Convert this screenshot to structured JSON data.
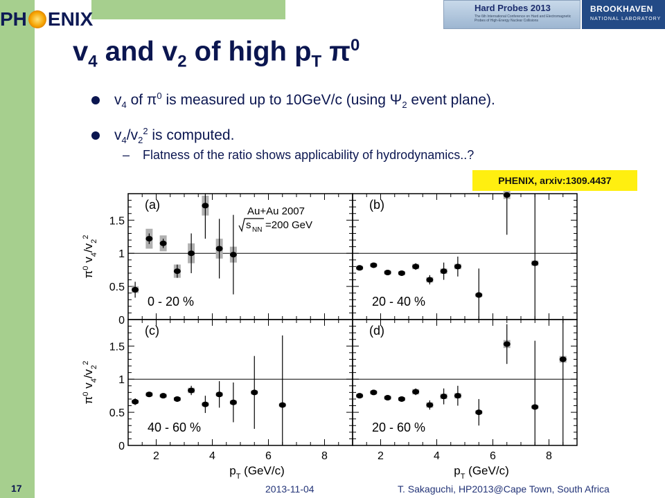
{
  "header": {
    "logo_text_left": "PH",
    "logo_text_right": "ENIX",
    "conference_title": "Hard Probes 2013",
    "conference_subtitle": "The 6th International Conference on Hard and Electromagnetic Probes of High-Energy Nuclear Collisions",
    "lab_name_line1": "BROOKHAVEN",
    "lab_name_line2": "NATIONAL LABORATORY"
  },
  "slide": {
    "title_a": "v",
    "title_a_sub": "4",
    "title_b": " and v",
    "title_b_sub": "2",
    "title_c": " of high p",
    "title_c_sub": "T",
    "title_d": " π",
    "title_d_sup": "0",
    "bullet1_a": "v",
    "bullet1_a_sub": "4",
    "bullet1_b": " of π",
    "bullet1_b_sup": "0",
    "bullet1_c": " is measured up to 10GeV/c (using Ψ",
    "bullet1_c_sub": "2",
    "bullet1_d": " event plane).",
    "bullet2_a": "v",
    "bullet2_a_sub": "4",
    "bullet2_b": "/v",
    "bullet2_b_sub": "2",
    "bullet2_b_sup": "2",
    "bullet2_c": " is computed.",
    "subbullet_dash": "–",
    "subbullet": "Flatness of the ratio shows applicability of hydrodynamics..?",
    "citation": "PHENIX, arxiv:1309.4437"
  },
  "footer": {
    "page": "17",
    "date": "2013-11-04",
    "author": "T. Sakaguchi, HP2013@Cape Town, South Africa"
  },
  "colors": {
    "navy": "#0b1650",
    "sidebar_green": "#a6cf8e",
    "highlight_yellow": "#ffef10",
    "syst_gray": "#b0b0b0"
  },
  "chart_data": [
    {
      "type": "scatter",
      "panel": "(a)",
      "annotation": "0 - 20 %",
      "extra_text": [
        "Au+Au 2007",
        "√s",
        "NN",
        "=200 GeV"
      ],
      "ylabel": "π0 v4/v2^2",
      "ylim": [
        0,
        1.9
      ],
      "xlim": [
        1,
        9
      ],
      "yticks": [
        "0",
        "0.5",
        "1",
        "1.5"
      ],
      "reference_line": 1,
      "points": [
        {
          "x": 1.25,
          "y": 0.45,
          "yerr": 0.12,
          "sys": 0.05
        },
        {
          "x": 1.75,
          "y": 1.22,
          "yerr": 0.08,
          "sys": 0.15
        },
        {
          "x": 2.25,
          "y": 1.15,
          "yerr": 0.07,
          "sys": 0.12
        },
        {
          "x": 2.75,
          "y": 0.73,
          "yerr": 0.1,
          "sys": 0.1
        },
        {
          "x": 3.25,
          "y": 1.0,
          "yerr": 0.3,
          "sys": 0.15
        },
        {
          "x": 3.75,
          "y": 1.72,
          "yerr": 0.5,
          "sys": 0.15
        },
        {
          "x": 4.25,
          "y": 1.07,
          "yerr": 0.45,
          "sys": 0.15
        },
        {
          "x": 4.75,
          "y": 0.98,
          "yerr": 0.6,
          "sys": 0.12
        }
      ]
    },
    {
      "type": "scatter",
      "panel": "(b)",
      "annotation": "20 - 40 %",
      "ylim": [
        0,
        1.9
      ],
      "xlim": [
        1,
        9
      ],
      "reference_line": 1,
      "points": [
        {
          "x": 1.25,
          "y": 0.78,
          "yerr": 0.03,
          "sys": 0.03
        },
        {
          "x": 1.75,
          "y": 0.82,
          "yerr": 0.03,
          "sys": 0.03
        },
        {
          "x": 2.25,
          "y": 0.71,
          "yerr": 0.03,
          "sys": 0.03
        },
        {
          "x": 2.75,
          "y": 0.7,
          "yerr": 0.03,
          "sys": 0.03
        },
        {
          "x": 3.25,
          "y": 0.8,
          "yerr": 0.05,
          "sys": 0.04
        },
        {
          "x": 3.75,
          "y": 0.6,
          "yerr": 0.07,
          "sys": 0.04
        },
        {
          "x": 4.25,
          "y": 0.73,
          "yerr": 0.13,
          "sys": 0.04
        },
        {
          "x": 4.75,
          "y": 0.8,
          "yerr": 0.15,
          "sys": 0.04
        },
        {
          "x": 5.5,
          "y": 0.37,
          "yerr": 0.4,
          "sys": 0.03
        },
        {
          "x": 6.5,
          "y": 1.88,
          "yerr": 0.6,
          "sys": 0.06
        },
        {
          "x": 7.5,
          "y": 0.85,
          "yerr": 1.2,
          "sys": 0.04
        }
      ]
    },
    {
      "type": "scatter",
      "panel": "(c)",
      "annotation": "40 - 60 %",
      "ylabel": "π0 v4/v2^2",
      "xlabel": "pT (GeV/c)",
      "ylim": [
        0,
        1.9
      ],
      "xlim": [
        1,
        9
      ],
      "yticks": [
        "0",
        "0.5",
        "1",
        "1.5"
      ],
      "xticks": [
        "2",
        "4",
        "6",
        "8"
      ],
      "reference_line": 1,
      "points": [
        {
          "x": 1.25,
          "y": 0.66,
          "yerr": 0.05,
          "sys": 0.03
        },
        {
          "x": 1.75,
          "y": 0.77,
          "yerr": 0.03,
          "sys": 0.03
        },
        {
          "x": 2.25,
          "y": 0.75,
          "yerr": 0.03,
          "sys": 0.03
        },
        {
          "x": 2.75,
          "y": 0.7,
          "yerr": 0.04,
          "sys": 0.03
        },
        {
          "x": 3.25,
          "y": 0.83,
          "yerr": 0.07,
          "sys": 0.04
        },
        {
          "x": 3.75,
          "y": 0.62,
          "yerr": 0.13,
          "sys": 0.03
        },
        {
          "x": 4.25,
          "y": 0.77,
          "yerr": 0.2,
          "sys": 0.03
        },
        {
          "x": 4.75,
          "y": 0.65,
          "yerr": 0.3,
          "sys": 0.03
        },
        {
          "x": 5.5,
          "y": 0.8,
          "yerr": 0.55,
          "sys": 0.03
        },
        {
          "x": 6.5,
          "y": 0.61,
          "yerr": 1.05,
          "sys": 0.03
        }
      ]
    },
    {
      "type": "scatter",
      "panel": "(d)",
      "annotation": "20 - 60 %",
      "xlabel": "pT (GeV/c)",
      "ylim": [
        0,
        1.9
      ],
      "xlim": [
        1,
        9
      ],
      "xticks": [
        "2",
        "4",
        "6",
        "8"
      ],
      "reference_line": 1,
      "points": [
        {
          "x": 1.25,
          "y": 0.75,
          "yerr": 0.03,
          "sys": 0.03
        },
        {
          "x": 1.75,
          "y": 0.8,
          "yerr": 0.03,
          "sys": 0.03
        },
        {
          "x": 2.25,
          "y": 0.72,
          "yerr": 0.03,
          "sys": 0.03
        },
        {
          "x": 2.75,
          "y": 0.7,
          "yerr": 0.03,
          "sys": 0.03
        },
        {
          "x": 3.25,
          "y": 0.81,
          "yerr": 0.05,
          "sys": 0.04
        },
        {
          "x": 3.75,
          "y": 0.61,
          "yerr": 0.07,
          "sys": 0.04
        },
        {
          "x": 4.25,
          "y": 0.74,
          "yerr": 0.12,
          "sys": 0.04
        },
        {
          "x": 4.75,
          "y": 0.75,
          "yerr": 0.15,
          "sys": 0.04
        },
        {
          "x": 5.5,
          "y": 0.5,
          "yerr": 0.2,
          "sys": 0.03
        },
        {
          "x": 6.5,
          "y": 1.53,
          "yerr": 0.3,
          "sys": 0.06
        },
        {
          "x": 7.5,
          "y": 0.58,
          "yerr": 1.0,
          "sys": 0.03
        },
        {
          "x": 8.5,
          "y": 1.3,
          "yerr": 1.3,
          "sys": 0.05
        }
      ]
    }
  ]
}
